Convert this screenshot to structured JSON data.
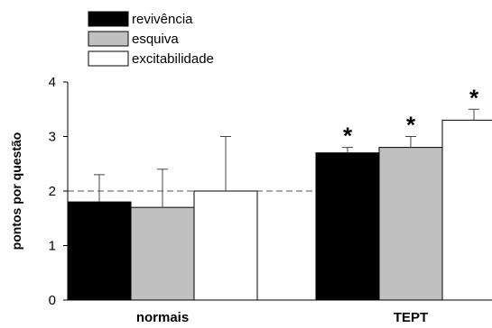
{
  "chart_data": {
    "type": "bar",
    "categories": [
      "normais",
      "TEPT"
    ],
    "series": [
      {
        "name": "revivência",
        "color": "#000000",
        "values": [
          1.8,
          2.7
        ],
        "errors": [
          0.5,
          0.1
        ]
      },
      {
        "name": "esquiva",
        "color": "#c0c0c0",
        "values": [
          1.7,
          2.8
        ],
        "errors": [
          0.7,
          0.2
        ]
      },
      {
        "name": "excitabilidade",
        "color": "#ffffff",
        "values": [
          2.0,
          3.3
        ],
        "errors": [
          1.0,
          0.2
        ]
      }
    ],
    "significance": [
      {
        "category": "TEPT",
        "series": "revivência",
        "label": "*"
      },
      {
        "category": "TEPT",
        "series": "esquiva",
        "label": "*"
      },
      {
        "category": "TEPT",
        "series": "excitabilidade",
        "label": "*"
      }
    ],
    "reference_line": {
      "y": 2,
      "style": "dashed"
    },
    "ylabel": "pontos por questão",
    "ylim": [
      0,
      4
    ],
    "yticks": [
      "0",
      "1",
      "2",
      "3",
      "4"
    ],
    "grid": false,
    "legend_position": "top-left"
  }
}
